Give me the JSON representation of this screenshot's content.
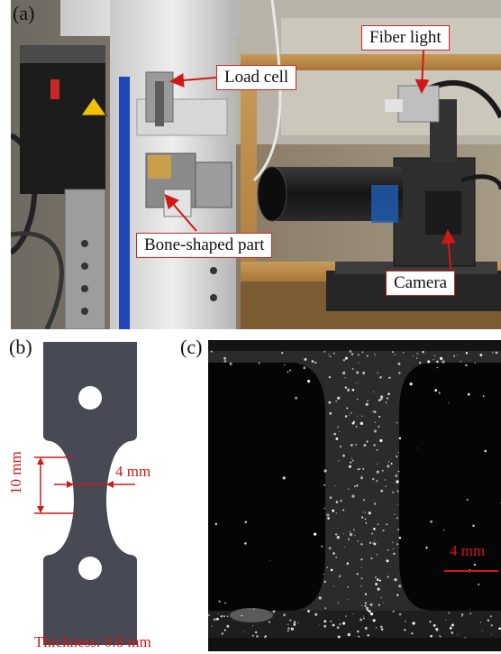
{
  "panels": {
    "a": {
      "label": "(a)",
      "callouts": {
        "load_cell": "Load cell",
        "fiber_light": "Fiber light",
        "bone_part": "Bone-shaped part",
        "camera": "Camera"
      }
    },
    "b": {
      "label": "(b)",
      "length_dim": "10 mm",
      "width_dim": "4 mm",
      "thickness": "Thickness: 0.8 mm"
    },
    "c": {
      "label": "(c)",
      "scale_bar": "4 mm"
    }
  },
  "colors": {
    "annotation_red": "#d01818",
    "specimen_gray": "#474a55"
  }
}
